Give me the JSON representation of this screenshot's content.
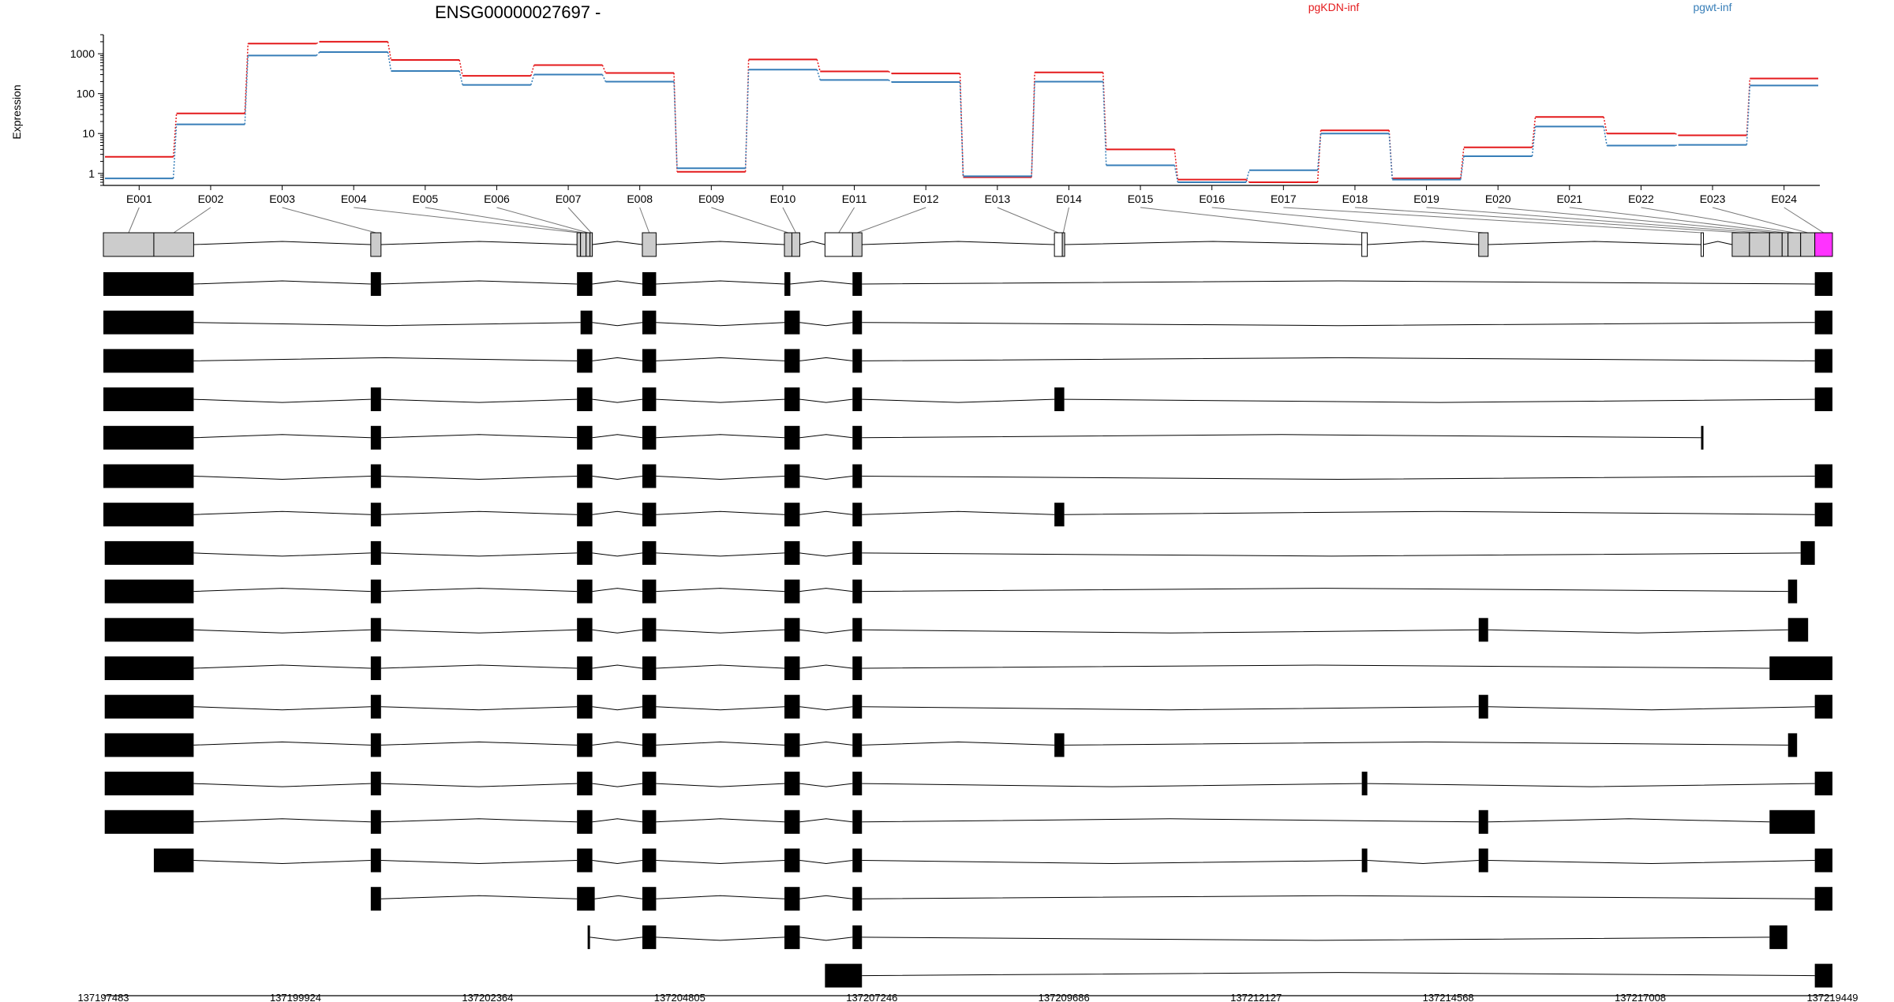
{
  "chart_data": {
    "type": "line",
    "title": "ENSG00000027697 -",
    "ylabel": "Expression",
    "y_scale": "log",
    "ylim": [
      0.5,
      3000
    ],
    "y_ticks": [
      1,
      10,
      100,
      1000
    ],
    "y_tick_labels": [
      "1",
      "10",
      "100",
      "1000"
    ],
    "categories": [
      "E001",
      "E002",
      "E003",
      "E004",
      "E005",
      "E006",
      "E007",
      "E008",
      "E009",
      "E010",
      "E011",
      "E012",
      "E013",
      "E014",
      "E015",
      "E016",
      "E017",
      "E018",
      "E019",
      "E020",
      "E021",
      "E022",
      "E023",
      "E024"
    ],
    "series": [
      {
        "name": "pgKDN-inf",
        "color": "#e41a1c",
        "values": [
          2.6,
          32,
          1800,
          2000,
          700,
          280,
          520,
          330,
          1.1,
          720,
          360,
          320,
          0.8,
          340,
          4,
          0.7,
          0.6,
          12,
          0.75,
          4.5,
          26,
          10,
          9,
          240
        ]
      },
      {
        "name": "pgwt-inf",
        "color": "#377eb8",
        "values": [
          0.75,
          17,
          900,
          1100,
          370,
          165,
          300,
          200,
          1.35,
          400,
          220,
          195,
          0.85,
          200,
          1.6,
          0.6,
          1.2,
          10,
          0.7,
          2.7,
          15,
          5,
          5.2,
          160
        ]
      }
    ],
    "legend": {
      "placement": "top",
      "entries": [
        "pgKDN-inf",
        "pgwt-inf"
      ]
    },
    "grid": false,
    "genomic_axis": {
      "range": [
        137197483,
        137219449
      ],
      "ticks": [
        137197483,
        137199924,
        137202364,
        137204805,
        137207246,
        137209686,
        137212127,
        137214568,
        137217008,
        137219449
      ],
      "tick_labels": [
        "137197483",
        "137199924",
        "137202364",
        "137204805",
        "137207246",
        "137209686",
        "137212127",
        "137214568",
        "137217008",
        "137219449"
      ]
    },
    "exon_bins": [
      {
        "id": "E001",
        "start": 137197483,
        "end": 137198124,
        "color": "#cccccc"
      },
      {
        "id": "E002",
        "start": 137198124,
        "end": 137198630,
        "color": "#cccccc"
      },
      {
        "id": "E003",
        "start": 137200880,
        "end": 137201010,
        "color": "#cccccc"
      },
      {
        "id": "E004",
        "start": 137203500,
        "end": 137203545,
        "color": "#cccccc"
      },
      {
        "id": "E005",
        "start": 137203545,
        "end": 137203615,
        "color": "#cccccc"
      },
      {
        "id": "E006",
        "start": 137203615,
        "end": 137203665,
        "color": "#cccccc"
      },
      {
        "id": "E007",
        "start": 137203665,
        "end": 137203695,
        "color": "#cccccc"
      },
      {
        "id": "E008",
        "start": 137204330,
        "end": 137204505,
        "color": "#cccccc"
      },
      {
        "id": "E009",
        "start": 137206135,
        "end": 137206230,
        "color": "#cccccc"
      },
      {
        "id": "E010",
        "start": 137206230,
        "end": 137206330,
        "color": "#cccccc"
      },
      {
        "id": "E011",
        "start": 137206650,
        "end": 137207000,
        "color": "#ffffff"
      },
      {
        "id": "E012",
        "start": 137207000,
        "end": 137207120,
        "color": "#cccccc"
      },
      {
        "id": "E013",
        "start": 137209565,
        "end": 137209665,
        "color": "#ffffff"
      },
      {
        "id": "E014",
        "start": 137209665,
        "end": 137209690,
        "color": "#cccccc"
      },
      {
        "id": "E015",
        "start": 137213470,
        "end": 137213540,
        "color": "#ffffff"
      },
      {
        "id": "E016",
        "start": 137214955,
        "end": 137215075,
        "color": "#cccccc"
      },
      {
        "id": "E017",
        "start": 137217780,
        "end": 137217810,
        "color": "#ffffff"
      },
      {
        "id": "E018",
        "start": 137218175,
        "end": 137218395,
        "color": "#cccccc"
      },
      {
        "id": "E019",
        "start": 137218395,
        "end": 137218650,
        "color": "#cccccc"
      },
      {
        "id": "E020",
        "start": 137218650,
        "end": 137218810,
        "color": "#cccccc"
      },
      {
        "id": "E021",
        "start": 137218810,
        "end": 137218885,
        "color": "#cccccc"
      },
      {
        "id": "E022",
        "start": 137218885,
        "end": 137219045,
        "color": "#cccccc"
      },
      {
        "id": "E023",
        "start": 137219045,
        "end": 137219225,
        "color": "#cccccc"
      },
      {
        "id": "E024",
        "start": 137219225,
        "end": 137219449,
        "color": "#ff33ff"
      }
    ],
    "transcripts": [
      {
        "exons": [
          [
            137197483,
            137198630
          ],
          [
            137200880,
            137201010
          ],
          [
            137203500,
            137203695
          ],
          [
            137204330,
            137204505
          ],
          [
            137206135,
            137206210
          ],
          [
            137207000,
            137207120
          ],
          [
            137219225,
            137219449
          ]
        ]
      },
      {
        "exons": [
          [
            137197483,
            137198630
          ],
          [
            137203545,
            137203695
          ],
          [
            137204330,
            137204505
          ],
          [
            137206135,
            137206330
          ],
          [
            137207000,
            137207120
          ],
          [
            137219225,
            137219449
          ]
        ]
      },
      {
        "exons": [
          [
            137197483,
            137198630
          ],
          [
            137203500,
            137203695
          ],
          [
            137204330,
            137204505
          ],
          [
            137206135,
            137206330
          ],
          [
            137207000,
            137207120
          ],
          [
            137219225,
            137219449
          ]
        ]
      },
      {
        "exons": [
          [
            137197483,
            137198630
          ],
          [
            137200880,
            137201010
          ],
          [
            137203500,
            137203695
          ],
          [
            137204330,
            137204505
          ],
          [
            137206135,
            137206330
          ],
          [
            137207000,
            137207120
          ],
          [
            137209565,
            137209690
          ],
          [
            137219225,
            137219449
          ]
        ]
      },
      {
        "exons": [
          [
            137197483,
            137198630
          ],
          [
            137200880,
            137201010
          ],
          [
            137203500,
            137203695
          ],
          [
            137204330,
            137204505
          ],
          [
            137206135,
            137206330
          ],
          [
            137207000,
            137207120
          ],
          [
            137217780,
            137217810
          ]
        ]
      },
      {
        "exons": [
          [
            137197483,
            137198630
          ],
          [
            137200880,
            137201010
          ],
          [
            137203500,
            137203695
          ],
          [
            137204330,
            137204505
          ],
          [
            137206135,
            137206330
          ],
          [
            137207000,
            137207120
          ],
          [
            137219225,
            137219449
          ]
        ]
      },
      {
        "exons": [
          [
            137197483,
            137198630
          ],
          [
            137200880,
            137201010
          ],
          [
            137203500,
            137203695
          ],
          [
            137204330,
            137204505
          ],
          [
            137206135,
            137206330
          ],
          [
            137207000,
            137207120
          ],
          [
            137209565,
            137209690
          ],
          [
            137219225,
            137219449
          ]
        ]
      },
      {
        "exons": [
          [
            137197500,
            137198630
          ],
          [
            137200880,
            137201010
          ],
          [
            137203500,
            137203695
          ],
          [
            137204330,
            137204505
          ],
          [
            137206135,
            137206330
          ],
          [
            137207000,
            137207120
          ],
          [
            137219045,
            137219225
          ]
        ]
      },
      {
        "exons": [
          [
            137197500,
            137198630
          ],
          [
            137200880,
            137201010
          ],
          [
            137203500,
            137203695
          ],
          [
            137204330,
            137204505
          ],
          [
            137206135,
            137206330
          ],
          [
            137207000,
            137207120
          ],
          [
            137218885,
            137219000
          ]
        ]
      },
      {
        "exons": [
          [
            137197500,
            137198630
          ],
          [
            137200880,
            137201010
          ],
          [
            137203500,
            137203695
          ],
          [
            137204330,
            137204505
          ],
          [
            137206135,
            137206330
          ],
          [
            137207000,
            137207120
          ],
          [
            137214955,
            137215075
          ],
          [
            137218885,
            137219140
          ]
        ]
      },
      {
        "exons": [
          [
            137197500,
            137198630
          ],
          [
            137200880,
            137201010
          ],
          [
            137203500,
            137203695
          ],
          [
            137204330,
            137204505
          ],
          [
            137206135,
            137206330
          ],
          [
            137207000,
            137207120
          ],
          [
            137218650,
            137219449
          ]
        ]
      },
      {
        "exons": [
          [
            137197500,
            137198630
          ],
          [
            137200880,
            137201010
          ],
          [
            137203500,
            137203695
          ],
          [
            137204330,
            137204505
          ],
          [
            137206135,
            137206330
          ],
          [
            137207000,
            137207120
          ],
          [
            137214955,
            137215075
          ],
          [
            137219225,
            137219449
          ]
        ]
      },
      {
        "exons": [
          [
            137197500,
            137198630
          ],
          [
            137200880,
            137201010
          ],
          [
            137203500,
            137203695
          ],
          [
            137204330,
            137204505
          ],
          [
            137206135,
            137206330
          ],
          [
            137207000,
            137207120
          ],
          [
            137209565,
            137209690
          ],
          [
            137218885,
            137219000
          ]
        ]
      },
      {
        "exons": [
          [
            137197500,
            137198630
          ],
          [
            137200880,
            137201010
          ],
          [
            137203500,
            137203695
          ],
          [
            137204330,
            137204505
          ],
          [
            137206135,
            137206330
          ],
          [
            137207000,
            137207120
          ],
          [
            137213470,
            137213540
          ],
          [
            137219225,
            137219449
          ]
        ]
      },
      {
        "exons": [
          [
            137197500,
            137198630
          ],
          [
            137200880,
            137201010
          ],
          [
            137203500,
            137203695
          ],
          [
            137204330,
            137204505
          ],
          [
            137206135,
            137206330
          ],
          [
            137207000,
            137207120
          ],
          [
            137214955,
            137215075
          ],
          [
            137218650,
            137219225
          ]
        ]
      },
      {
        "exons": [
          [
            137198124,
            137198630
          ],
          [
            137200880,
            137201010
          ],
          [
            137203500,
            137203695
          ],
          [
            137204330,
            137204505
          ],
          [
            137206135,
            137206330
          ],
          [
            137207000,
            137207120
          ],
          [
            137213470,
            137213540
          ],
          [
            137214955,
            137215075
          ],
          [
            137219225,
            137219449
          ]
        ]
      },
      {
        "exons": [
          [
            137200880,
            137201010
          ],
          [
            137203500,
            137203725
          ],
          [
            137204330,
            137204505
          ],
          [
            137206135,
            137206330
          ],
          [
            137207000,
            137207120
          ],
          [
            137219225,
            137219449
          ]
        ]
      },
      {
        "exons": [
          [
            137203635,
            137203665
          ],
          [
            137204330,
            137204505
          ],
          [
            137206135,
            137206330
          ],
          [
            137207000,
            137207120
          ],
          [
            137218650,
            137218875
          ]
        ]
      },
      {
        "exons": [
          [
            137206650,
            137207120
          ],
          [
            137219225,
            137219449
          ]
        ]
      }
    ]
  }
}
